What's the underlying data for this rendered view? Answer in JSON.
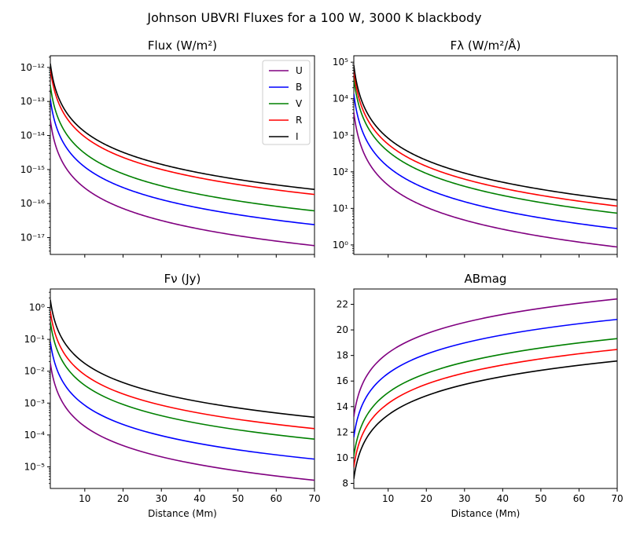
{
  "figure_title": "Johnson UBVRI Fluxes for a 100 W, 3000 K blackbody",
  "chart_data": [
    {
      "type": "line",
      "title": "Flux (W/m²)",
      "xlabel": "",
      "yscale": "log",
      "xlim": [
        1,
        70
      ],
      "ylim": [
        3.2e-18,
        2.2e-12
      ],
      "xticks": [
        10,
        20,
        30,
        40,
        50,
        60,
        70
      ],
      "xticklabels_shown": false,
      "yticks": [
        1e-17,
        1e-16,
        1e-15,
        1e-14,
        1e-13,
        1e-12
      ],
      "yticklabels": [
        "10⁻¹⁷",
        "10⁻¹⁶",
        "10⁻¹⁵",
        "10⁻¹⁴",
        "10⁻¹³",
        "10⁻¹²"
      ],
      "legend": "top-right",
      "x": [
        1,
        70
      ],
      "series": [
        {
          "name": "U",
          "color": "#800080",
          "values": [
            2.9e-14,
            5.8e-18
          ]
        },
        {
          "name": "B",
          "color": "#0000ff",
          "values": [
            1.2e-13,
            2.4e-17
          ]
        },
        {
          "name": "V",
          "color": "#008000",
          "values": [
            3e-13,
            6.1e-17
          ]
        },
        {
          "name": "R",
          "color": "#ff0000",
          "values": [
            9.1e-13,
            1.85e-16
          ]
        },
        {
          "name": "I",
          "color": "#000000",
          "values": [
            1.3e-12,
            2.6e-16
          ]
        }
      ]
    },
    {
      "type": "line",
      "title": "Fλ (W/m²/Å)",
      "xlabel": "",
      "yscale": "log",
      "xlim": [
        1,
        70
      ],
      "ylim": [
        0.55,
        150000
      ],
      "xticks": [
        10,
        20,
        30,
        40,
        50,
        60,
        70
      ],
      "xticklabels_shown": false,
      "yticks": [
        1,
        10,
        100,
        1000,
        10000,
        100000
      ],
      "yticklabels": [
        "10⁰",
        "10¹",
        "10²",
        "10³",
        "10⁴",
        "10⁵"
      ],
      "x": [
        1,
        70
      ],
      "series": [
        {
          "name": "U",
          "color": "#800080",
          "values": [
            4300,
            0.88
          ]
        },
        {
          "name": "B",
          "color": "#0000ff",
          "values": [
            13700,
            2.8
          ]
        },
        {
          "name": "V",
          "color": "#008000",
          "values": [
            36000,
            7.4
          ]
        },
        {
          "name": "R",
          "color": "#ff0000",
          "values": [
            57000,
            11.6
          ]
        },
        {
          "name": "I",
          "color": "#000000",
          "values": [
            83000,
            17
          ]
        }
      ]
    },
    {
      "type": "line",
      "title": "Fν (Jy)",
      "xlabel": "Distance (Mm)",
      "yscale": "log",
      "xlim": [
        1,
        70
      ],
      "ylim": [
        2.1e-06,
        3.8
      ],
      "xticks": [
        10,
        20,
        30,
        40,
        50,
        60,
        70
      ],
      "xticklabels": [
        "10",
        "20",
        "30",
        "40",
        "50",
        "60",
        "70"
      ],
      "yticks": [
        1e-05,
        0.0001,
        0.001,
        0.01,
        0.1,
        1
      ],
      "yticklabels": [
        "10⁻⁵",
        "10⁻⁴",
        "10⁻³",
        "10⁻²",
        "10⁻¹",
        "10⁰"
      ],
      "x": [
        1,
        70
      ],
      "series": [
        {
          "name": "U",
          "color": "#800080",
          "values": [
            0.0185,
            3.8e-06
          ]
        },
        {
          "name": "B",
          "color": "#0000ff",
          "values": [
            0.085,
            1.75e-05
          ]
        },
        {
          "name": "V",
          "color": "#008000",
          "values": [
            0.36,
            7.4e-05
          ]
        },
        {
          "name": "R",
          "color": "#ff0000",
          "values": [
            0.77,
            0.000158
          ]
        },
        {
          "name": "I",
          "color": "#000000",
          "values": [
            1.75,
            0.00036
          ]
        }
      ]
    },
    {
      "type": "line",
      "title": "ABmag",
      "xlabel": "Distance (Mm)",
      "yscale": "linear",
      "xlim": [
        1,
        70
      ],
      "ylim": [
        7.6,
        23.2
      ],
      "xticks": [
        10,
        20,
        30,
        40,
        50,
        60,
        70
      ],
      "xticklabels": [
        "10",
        "20",
        "30",
        "40",
        "50",
        "60",
        "70"
      ],
      "yticks": [
        8,
        10,
        12,
        14,
        16,
        18,
        20,
        22
      ],
      "yticklabels": [
        "8",
        "10",
        "12",
        "14",
        "16",
        "18",
        "20",
        "22"
      ],
      "x": [
        1,
        70
      ],
      "series": [
        {
          "name": "U",
          "color": "#800080",
          "values": [
            13.2,
            22.42
          ]
        },
        {
          "name": "B",
          "color": "#0000ff",
          "values": [
            11.6,
            20.82
          ]
        },
        {
          "name": "V",
          "color": "#008000",
          "values": [
            10.1,
            19.32
          ]
        },
        {
          "name": "R",
          "color": "#ff0000",
          "values": [
            9.25,
            18.47
          ]
        },
        {
          "name": "I",
          "color": "#000000",
          "values": [
            8.35,
            17.57
          ]
        }
      ]
    }
  ]
}
